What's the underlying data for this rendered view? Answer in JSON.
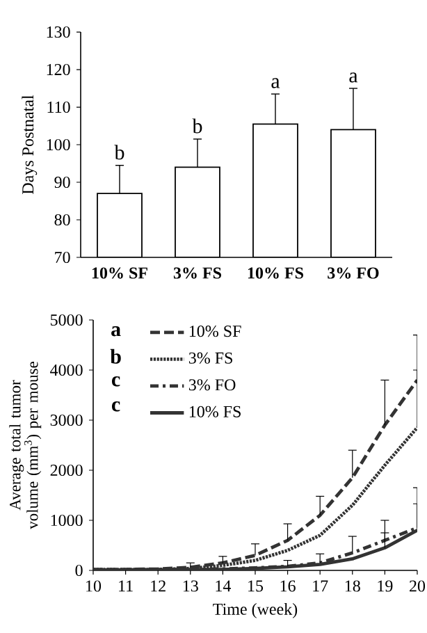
{
  "chart_data": [
    {
      "type": "bar",
      "ylabel": "Days Postnatal",
      "categories": [
        "10% SF",
        "3% FS",
        "10% FS",
        "3% FO"
      ],
      "values": [
        87,
        94,
        105.5,
        104
      ],
      "errors": [
        [
          87,
          94.5
        ],
        [
          94,
          101.5
        ],
        [
          105.5,
          113.5
        ],
        [
          104,
          115
        ]
      ],
      "color": "#ffffff",
      "ylim": [
        70,
        130
      ],
      "yticks": [
        70,
        80,
        90,
        100,
        110,
        120,
        130
      ],
      "annotations": [
        "b",
        "b",
        "a",
        "a"
      ]
    },
    {
      "type": "line",
      "xlabel": "Time (week)",
      "ylabel": "Average total tumor volume (mm$^{3}$) per mouse",
      "x": [
        10,
        11,
        12,
        13,
        14,
        15,
        16,
        17,
        18,
        19,
        20
      ],
      "series": [
        {
          "name": "10% SF",
          "color": "#333333",
          "line_style": "dashed",
          "values": [
            20,
            20,
            30,
            60,
            150,
            300,
            600,
            1100,
            1850,
            2900,
            3800
          ],
          "errors": [
            null,
            null,
            null,
            [
              60,
              150
            ],
            [
              150,
              280
            ],
            [
              300,
              530
            ],
            [
              600,
              930
            ],
            [
              1100,
              1480
            ],
            [
              1850,
              2400
            ],
            [
              2900,
              3800
            ],
            [
              3800,
              4700
            ]
          ]
        },
        {
          "name": "3% FS",
          "color": "#333333",
          "line_style": "dotted",
          "values": [
            20,
            20,
            20,
            40,
            100,
            200,
            400,
            700,
            1300,
            2100,
            2850
          ],
          "errors": [
            null,
            null,
            null,
            null,
            null,
            null,
            null,
            null,
            null,
            null,
            [
              2850,
              4000
            ]
          ]
        },
        {
          "name": "3% FO",
          "color": "#333333",
          "line_style": "dashdot",
          "values": [
            10,
            10,
            20,
            20,
            30,
            50,
            80,
            150,
            350,
            600,
            850
          ],
          "errors": [
            null,
            null,
            null,
            null,
            null,
            null,
            [
              80,
              200
            ],
            [
              150,
              330
            ],
            [
              350,
              680
            ],
            [
              600,
              1000
            ],
            [
              850,
              1650
            ]
          ]
        },
        {
          "name": "10% FS",
          "color": "#333333",
          "line_style": "solid",
          "values": [
            10,
            10,
            10,
            20,
            20,
            40,
            70,
            120,
            230,
            450,
            800
          ],
          "errors": [
            null,
            null,
            null,
            null,
            null,
            null,
            null,
            null,
            null,
            [
              450,
              750
            ],
            [
              800,
              1330
            ]
          ]
        }
      ],
      "xlim": [
        10,
        20
      ],
      "xticks": [
        10,
        11,
        12,
        13,
        14,
        15,
        16,
        17,
        18,
        19,
        20
      ],
      "ylim": [
        0,
        5000
      ],
      "yticks": [
        0,
        1000,
        2000,
        3000,
        4000,
        5000
      ],
      "legend": "top left",
      "annotations": [
        "a",
        "b",
        "c",
        "c"
      ]
    }
  ]
}
